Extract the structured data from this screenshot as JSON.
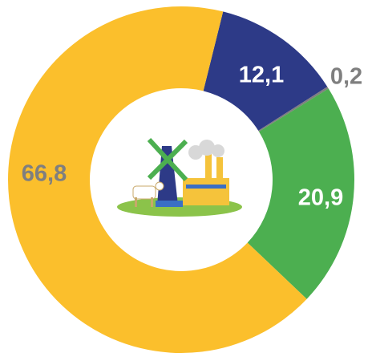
{
  "chart_data": {
    "type": "donut",
    "categories": [
      null,
      null,
      null,
      null
    ],
    "values": [
      12.1,
      0.2,
      20.9,
      66.8
    ],
    "value_labels": [
      "12,1",
      "0,2",
      "20,9",
      "66,8"
    ],
    "colors": [
      "#2d3a87",
      "#7f7f7f",
      "#4caf50",
      "#fbbf2c"
    ],
    "label_colors": [
      "#ffffff",
      "#7f7f7f",
      "#ffffff",
      "#7f7f7f"
    ]
  }
}
